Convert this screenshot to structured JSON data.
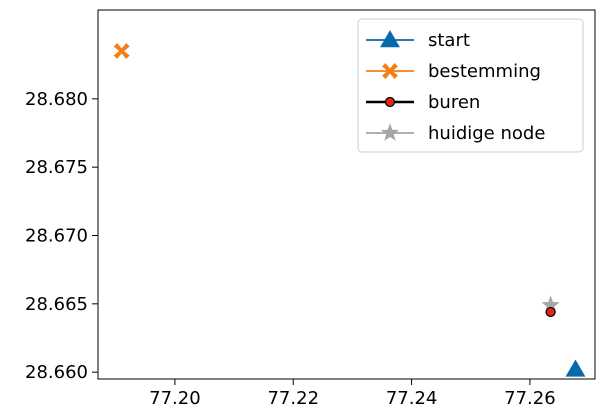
{
  "chart_data": {
    "type": "scatter",
    "title": "",
    "xlabel": "",
    "ylabel": "",
    "xlim": [
      77.187,
      77.271
    ],
    "ylim": [
      28.6595,
      28.6865
    ],
    "xticks": [
      77.2,
      77.22,
      77.24,
      77.26
    ],
    "yticks": [
      28.66,
      28.665,
      28.67,
      28.675,
      28.68
    ],
    "xtick_labels": [
      "77.20",
      "77.22",
      "77.24",
      "77.26"
    ],
    "ytick_labels": [
      "28.660",
      "28.665",
      "28.670",
      "28.675",
      "28.680"
    ],
    "grid": false,
    "legend_position": "top-right",
    "series": [
      {
        "name": "start",
        "marker": "triangle",
        "color": "#0868ac",
        "points": [
          [
            77.2677,
            28.6602
          ]
        ]
      },
      {
        "name": "bestemming",
        "marker": "x-filled",
        "color": "#f57f17",
        "points": [
          [
            77.191,
            28.6835
          ]
        ]
      },
      {
        "name": "buren",
        "marker": "circle",
        "color": "#e0261b",
        "edge_color": "#000000",
        "points": [
          [
            77.2635,
            28.6644
          ]
        ]
      },
      {
        "name": "huidige node",
        "marker": "star",
        "color": "#a6a6a6",
        "points": [
          [
            77.2635,
            28.6649
          ]
        ]
      }
    ]
  }
}
